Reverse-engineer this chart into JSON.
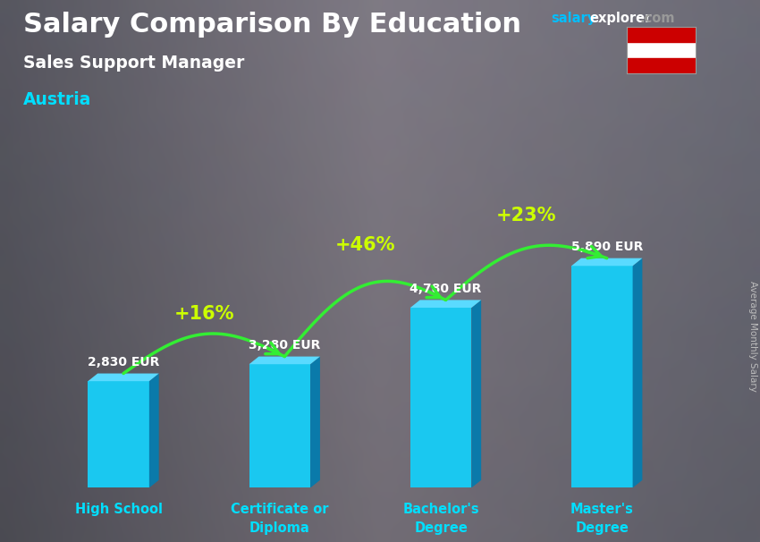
{
  "title": "Salary Comparison By Education",
  "subtitle": "Sales Support Manager",
  "country": "Austria",
  "categories": [
    "High School",
    "Certificate or\nDiploma",
    "Bachelor's\nDegree",
    "Master's\nDegree"
  ],
  "values": [
    2830,
    3280,
    4780,
    5890
  ],
  "value_labels": [
    "2,830 EUR",
    "3,280 EUR",
    "4,780 EUR",
    "5,890 EUR"
  ],
  "pct_changes": [
    "+16%",
    "+46%",
    "+23%"
  ],
  "bar_color_face": "#1AC8F0",
  "bar_color_side": "#0A7AAA",
  "bar_color_top": "#5ADAFF",
  "bg_color": "#5a5a62",
  "title_color": "#FFFFFF",
  "subtitle_color": "#FFFFFF",
  "country_color": "#00DFFF",
  "value_label_color": "#FFFFFF",
  "pct_color": "#CCFF00",
  "arrow_color": "#33EE33",
  "tick_label_color": "#00DFFF",
  "ylabel_color": "#BBBBBB",
  "ylabel_text": "Average Monthly Salary",
  "website_salary_color": "#00BFFF",
  "website_explorer_color": "#FFFFFF",
  "website_com_color": "#999999",
  "ylim": [
    0,
    8200
  ],
  "figsize": [
    8.5,
    6.06
  ],
  "dpi": 100
}
